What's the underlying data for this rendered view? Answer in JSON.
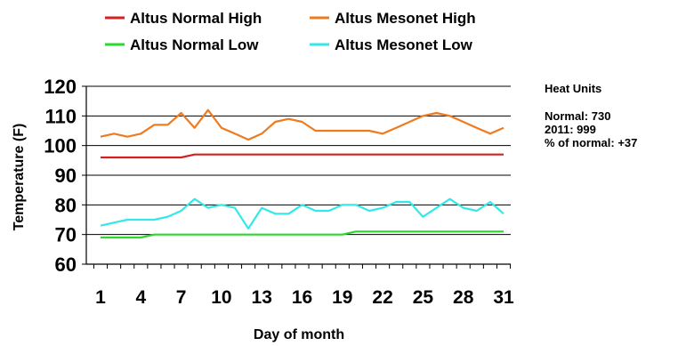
{
  "chart_data": {
    "type": "line",
    "title": "",
    "xlabel": "Day of month",
    "ylabel": "Temperature (F)",
    "ylim": [
      60,
      120
    ],
    "xlim": [
      1,
      31
    ],
    "yticks": [
      "60",
      "70",
      "80",
      "90",
      "100",
      "110",
      "120"
    ],
    "xticks": [
      "1",
      "4",
      "7",
      "10",
      "13",
      "16",
      "19",
      "22",
      "25",
      "28",
      "31"
    ],
    "grid": "horizontal",
    "legend_position": "top",
    "x": [
      1,
      2,
      3,
      4,
      5,
      6,
      7,
      8,
      9,
      10,
      11,
      12,
      13,
      14,
      15,
      16,
      17,
      18,
      19,
      20,
      21,
      22,
      23,
      24,
      25,
      26,
      27,
      28,
      29,
      30,
      31
    ],
    "series": [
      {
        "name": "Altus Normal High",
        "color": "#d62020",
        "values": [
          96,
          96,
          96,
          96,
          96,
          96,
          96,
          97,
          97,
          97,
          97,
          97,
          97,
          97,
          97,
          97,
          97,
          97,
          97,
          97,
          97,
          97,
          97,
          97,
          97,
          97,
          97,
          97,
          97,
          97,
          97
        ]
      },
      {
        "name": "Altus Mesonet High",
        "color": "#f07a1e",
        "values": [
          103,
          104,
          103,
          104,
          107,
          107,
          111,
          106,
          112,
          106,
          104,
          102,
          104,
          108,
          109,
          108,
          105,
          105,
          105,
          105,
          105,
          104,
          106,
          108,
          110,
          111,
          110,
          108,
          106,
          104,
          106
        ]
      },
      {
        "name": "Altus Normal Low",
        "color": "#2cd82c",
        "values": [
          69,
          69,
          69,
          69,
          70,
          70,
          70,
          70,
          70,
          70,
          70,
          70,
          70,
          70,
          70,
          70,
          70,
          70,
          70,
          71,
          71,
          71,
          71,
          71,
          71,
          71,
          71,
          71,
          71,
          71,
          71
        ]
      },
      {
        "name": "Altus Mesonet Low",
        "color": "#34e8e8",
        "values": [
          73,
          74,
          75,
          75,
          75,
          76,
          78,
          82,
          79,
          80,
          79,
          72,
          79,
          77,
          77,
          80,
          78,
          78,
          80,
          80,
          78,
          79,
          81,
          81,
          76,
          79,
          82,
          79,
          78,
          81,
          77
        ]
      }
    ]
  },
  "heat_units": {
    "title": "Heat Units",
    "normal": "Normal:  730",
    "year": "2011:  999",
    "percent": "% of normal:  +37"
  }
}
